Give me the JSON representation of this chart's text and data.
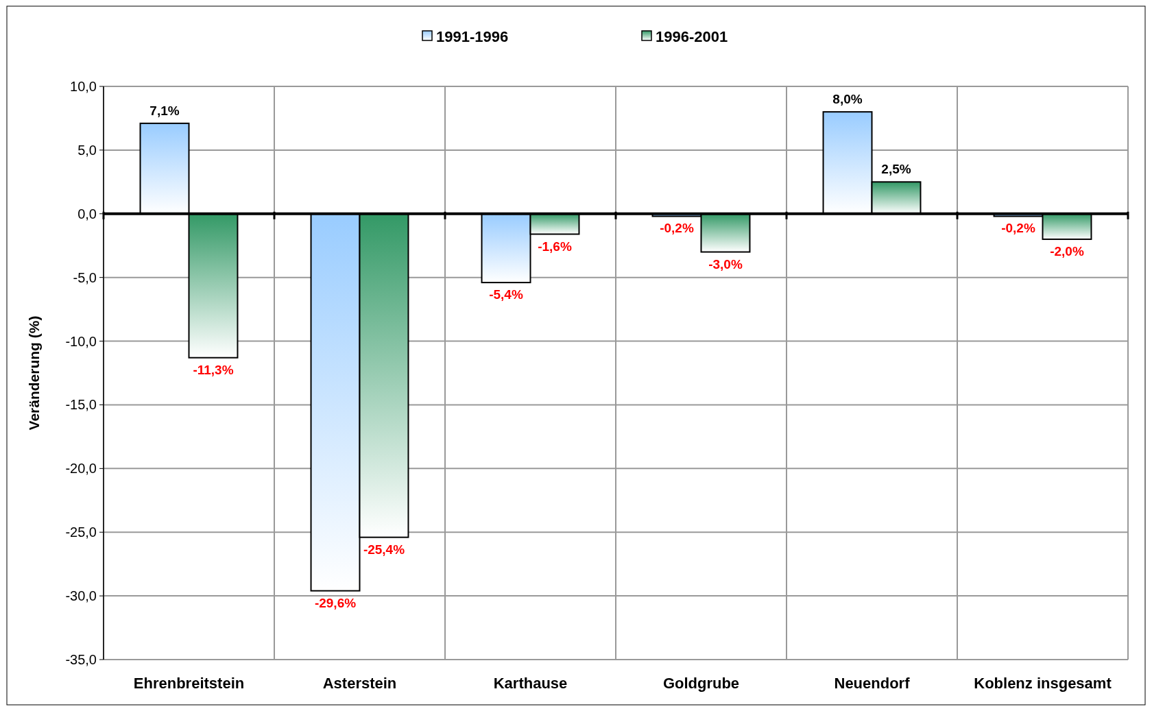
{
  "chart_data": {
    "type": "bar",
    "ylabel": "Veränderung (%)",
    "categories": [
      "Ehrenbreitstein",
      "Asterstein",
      "Karthause",
      "Goldgrube",
      "Neuendorf",
      "Koblenz insgesamt"
    ],
    "series": [
      {
        "name": "1991-1996",
        "color": "#99ccff",
        "values": [
          7.1,
          -29.6,
          -5.4,
          -0.2,
          8.0,
          -0.2
        ],
        "value_labels": [
          "7,1%",
          "-29,6%",
          "-5,4%",
          "-0,2%",
          "8,0%",
          "-0,2%"
        ]
      },
      {
        "name": "1996-2001",
        "color": "#339966",
        "values": [
          -11.3,
          -25.4,
          -1.6,
          -3.0,
          2.5,
          -2.0
        ],
        "value_labels": [
          "-11,3%",
          "-25,4%",
          "-1,6%",
          "-3,0%",
          "2,5%",
          "-2,0%"
        ]
      }
    ],
    "ylim": [
      -35,
      10
    ],
    "yticks": [
      {
        "value": -35,
        "label": "-35,0"
      },
      {
        "value": -30,
        "label": "-30,0"
      },
      {
        "value": -25,
        "label": "-25,0"
      },
      {
        "value": -20,
        "label": "-20,0"
      },
      {
        "value": -15,
        "label": "-15,0"
      },
      {
        "value": -10,
        "label": "-10,0"
      },
      {
        "value": -5,
        "label": "-5,0"
      },
      {
        "value": 0,
        "label": "0,0"
      },
      {
        "value": 5,
        "label": "5,0"
      },
      {
        "value": 10,
        "label": "10,0"
      }
    ],
    "grid": true,
    "legend": "top"
  }
}
